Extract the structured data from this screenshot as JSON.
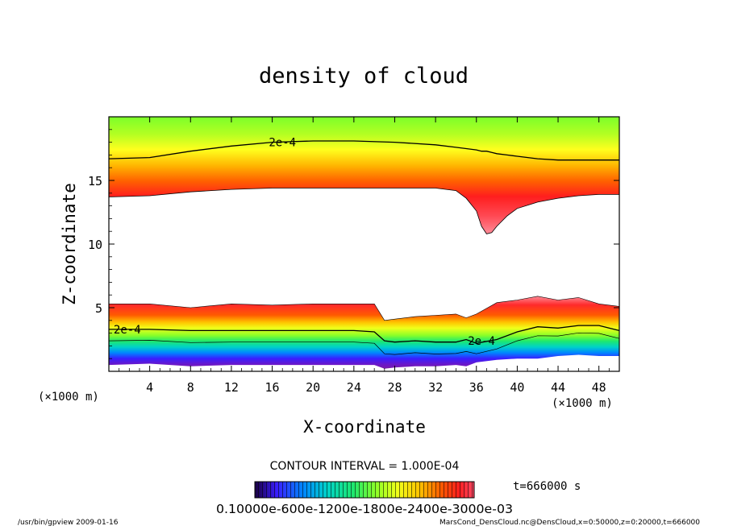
{
  "chart_data": {
    "type": "heatmap",
    "title": "density of cloud",
    "xlabel": "X-coordinate",
    "ylabel": "Z-coordinate",
    "x_unit": "(×1000 m)",
    "y_unit": "(×1000 m)",
    "xlim": [
      0,
      50
    ],
    "ylim": [
      0,
      20
    ],
    "x_ticks": [
      4,
      8,
      12,
      16,
      20,
      24,
      28,
      32,
      36,
      40,
      44,
      48
    ],
    "y_ticks": [
      5,
      10,
      15
    ],
    "contour_interval_text": "CONTOUR INTERVAL = 1.000E-04",
    "time_text": "t=666000 s",
    "colorbar_label_text": "0.10000e-600e-1200e-1800e-2400e-3000e-03",
    "footer_left": "/usr/bin/gpview  2009-01-16",
    "footer_right": "MarsCond_DensCloud.nc@DensCloud,x=0:50000,z=0:20000,t=666000",
    "upper_layer": {
      "x": [
        0,
        4,
        8,
        12,
        16,
        20,
        24,
        28,
        32,
        34,
        35,
        36,
        36.5,
        37,
        37.5,
        38,
        39,
        40,
        42,
        44,
        46,
        48,
        50
      ],
      "top": [
        20,
        20,
        20,
        20,
        20,
        20,
        20,
        20,
        20,
        20,
        20,
        20,
        20,
        20,
        20,
        20,
        20,
        20,
        20,
        20,
        20,
        20,
        20
      ],
      "bottom": [
        13.7,
        13.8,
        14.1,
        14.3,
        14.4,
        14.4,
        14.4,
        14.4,
        14.4,
        14.2,
        13.6,
        12.6,
        11.4,
        10.8,
        10.9,
        11.4,
        12.2,
        12.8,
        13.3,
        13.6,
        13.8,
        13.9,
        13.9
      ],
      "contour_2e-4": [
        16.7,
        16.8,
        17.3,
        17.7,
        18.0,
        18.1,
        18.1,
        18.0,
        17.8,
        17.6,
        17.5,
        17.4,
        17.3,
        17.3,
        17.2,
        17.1,
        17.0,
        16.9,
        16.7,
        16.6,
        16.6,
        16.6,
        16.6
      ]
    },
    "lower_layer": {
      "x": [
        0,
        4,
        8,
        12,
        16,
        20,
        24,
        26,
        27,
        28,
        30,
        32,
        34,
        35,
        36,
        38,
        40,
        42,
        44,
        46,
        48,
        50
      ],
      "top": [
        5.3,
        5.3,
        5.0,
        5.3,
        5.2,
        5.3,
        5.3,
        5.3,
        4.0,
        4.1,
        4.3,
        4.4,
        4.5,
        4.2,
        4.5,
        5.4,
        5.6,
        5.9,
        5.6,
        5.8,
        5.3,
        5.1
      ],
      "bottom": [
        0.5,
        0.6,
        0.4,
        0.5,
        0.5,
        0.5,
        0.5,
        0.5,
        0.2,
        0.3,
        0.4,
        0.4,
        0.5,
        0.4,
        0.7,
        0.9,
        1.0,
        1.0,
        1.2,
        1.3,
        1.2,
        1.2
      ],
      "contour_2e-4": [
        3.3,
        3.3,
        3.2,
        3.2,
        3.2,
        3.2,
        3.2,
        3.1,
        2.4,
        2.3,
        2.4,
        2.3,
        2.3,
        2.5,
        2.2,
        2.5,
        3.1,
        3.5,
        3.4,
        3.6,
        3.6,
        3.2
      ]
    },
    "contour_labels": [
      {
        "text": "2e-4",
        "x": 17.0,
        "z": 18.0
      },
      {
        "text": "2e-4",
        "x": 1.8,
        "z": 3.3
      },
      {
        "text": "2e-4",
        "x": 36.5,
        "z": 2.4
      }
    ],
    "color_scale": [
      "#ffffff",
      "#e0009a",
      "#ff2a2a",
      "#ff6a00",
      "#ffc400",
      "#f0ff1a",
      "#8aff28",
      "#22e86e",
      "#00d2c8",
      "#0076ff",
      "#3a1eff",
      "#7a1aa8"
    ]
  }
}
